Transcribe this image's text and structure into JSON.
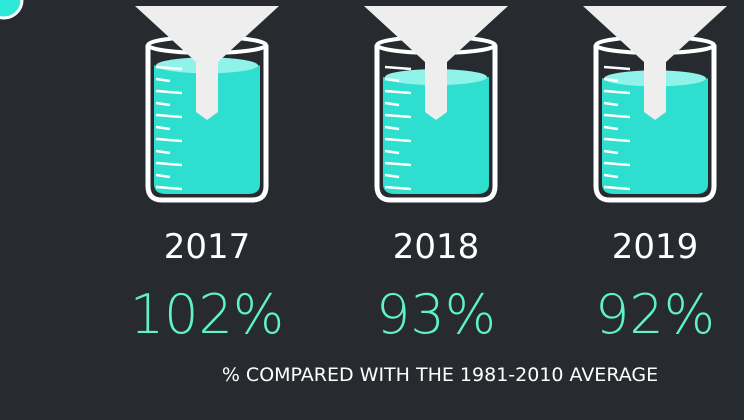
{
  "chart_data": {
    "type": "pictogram",
    "categories": [
      "2017",
      "2018",
      "2019"
    ],
    "values": [
      102,
      93,
      92
    ],
    "value_labels": [
      "102%",
      "93%",
      "92%"
    ],
    "color": "#2ee8d8",
    "caption": "% COMPARED WITH THE 1981-2010 AVERAGE"
  }
}
